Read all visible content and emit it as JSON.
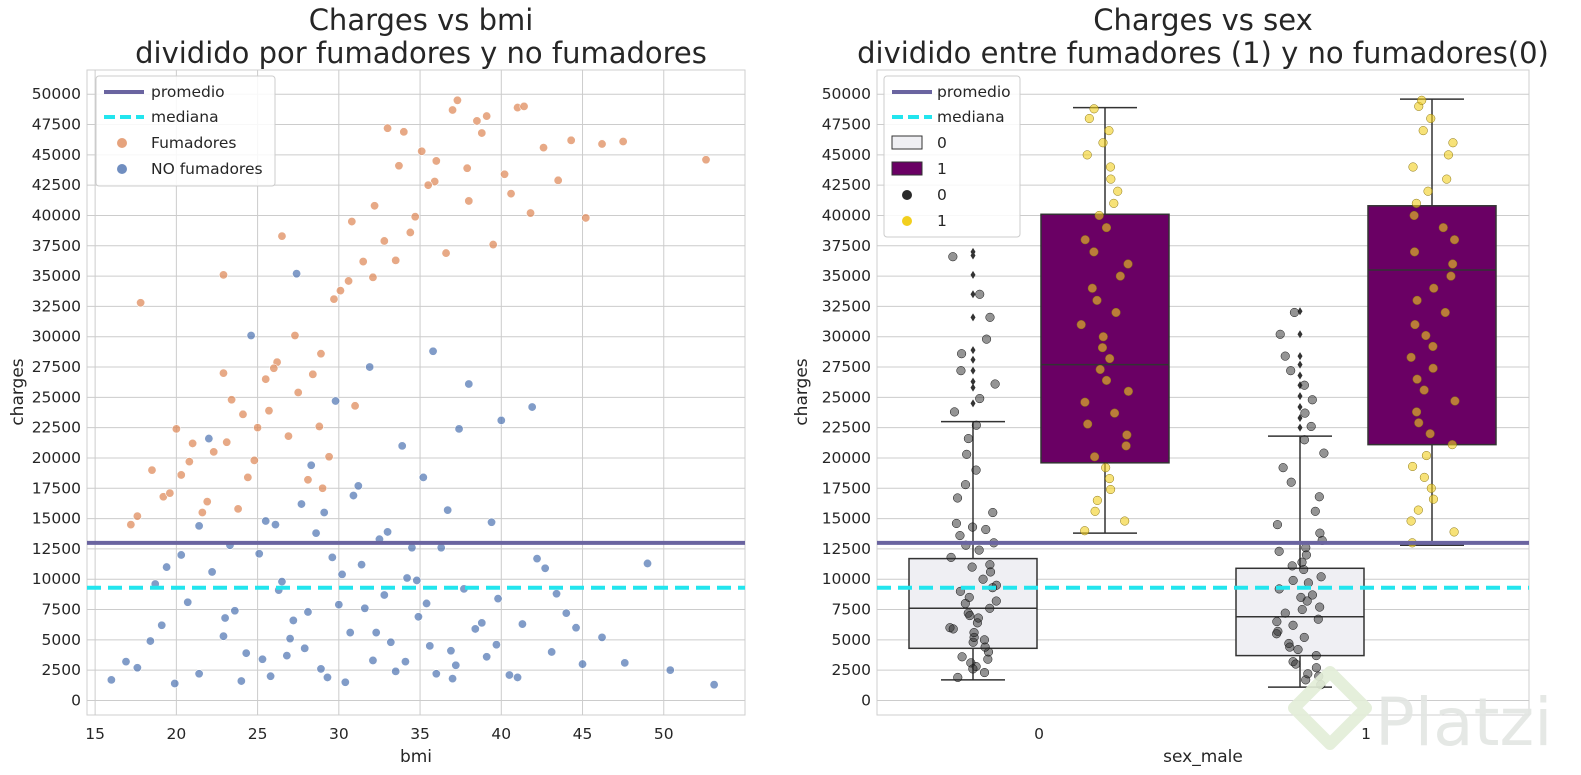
{
  "chart_data": [
    {
      "type": "scatter",
      "title": [
        "Charges vs bmi",
        "dividido por fumadores y no fumadores"
      ],
      "xlabel": "bmi",
      "ylabel": "charges",
      "xlim": [
        14.5,
        55
      ],
      "ylim": [
        -1200,
        52000
      ],
      "xticks": [
        15,
        20,
        25,
        30,
        35,
        40,
        45,
        50
      ],
      "yticks": [
        0,
        2500,
        5000,
        7500,
        10000,
        12500,
        15000,
        17500,
        20000,
        22500,
        25000,
        27500,
        30000,
        32500,
        35000,
        37500,
        40000,
        42500,
        45000,
        47500,
        50000
      ],
      "grid": true,
      "legend_position": "top-left",
      "hlines": [
        {
          "name": "promedio",
          "y": 13000,
          "style": "solid",
          "color": "#6a64a0"
        },
        {
          "name": "mediana",
          "y": 9300,
          "style": "dashed",
          "color": "#22e5ee"
        }
      ],
      "series": [
        {
          "name": "Fumadores",
          "color": "#dd8452",
          "x": [
            17.2,
            17.8,
            18.5,
            19.2,
            20.0,
            20.3,
            21.0,
            21.6,
            22.3,
            22.9,
            23.4,
            24.1,
            24.8,
            25.5,
            26.2,
            26.9,
            27.5,
            28.1,
            28.8,
            29.4,
            30.1,
            30.8,
            31.5,
            32.2,
            33.0,
            33.7,
            34.4,
            35.1,
            35.9,
            36.6,
            37.3,
            38.0,
            38.8,
            39.5,
            40.2,
            41.0,
            41.8,
            42.6,
            43.5,
            44.3,
            45.2,
            46.2,
            47.5,
            52.6,
            22.9,
            26.5,
            32.1,
            36.0,
            25.0,
            29.0,
            33.5,
            37.9,
            23.8,
            27.3,
            31.0,
            34.7,
            39.1,
            20.8,
            24.4,
            28.4,
            30.6,
            34.0,
            37.0,
            40.6,
            19.6,
            23.1,
            26.0,
            29.7,
            32.8,
            35.5,
            38.5,
            41.4,
            17.6,
            21.9,
            25.7,
            28.9
          ],
          "y": [
            14500,
            32800,
            19000,
            16800,
            22400,
            18600,
            21200,
            15500,
            20500,
            35100,
            24800,
            23600,
            19800,
            26500,
            27900,
            21800,
            25400,
            18200,
            22600,
            20100,
            33800,
            39500,
            36200,
            40800,
            47200,
            44100,
            38600,
            45300,
            42800,
            36900,
            49500,
            41200,
            46800,
            37600,
            43400,
            48900,
            40200,
            45600,
            42900,
            46200,
            39800,
            45900,
            46100,
            44600,
            27000,
            38300,
            34900,
            44500,
            22500,
            17500,
            36300,
            43900,
            15800,
            30100,
            24300,
            39900,
            48200,
            19700,
            18400,
            26900,
            34600,
            46900,
            48700,
            41800,
            17100,
            21300,
            27400,
            33100,
            37900,
            42500,
            47800,
            49000,
            15200,
            16400,
            23900,
            28600
          ]
        },
        {
          "name": "NO fumadores",
          "color": "#4c72b0",
          "x": [
            16.0,
            16.9,
            17.6,
            18.4,
            19.1,
            19.9,
            20.7,
            21.4,
            22.2,
            22.9,
            23.6,
            24.3,
            25.1,
            25.8,
            26.5,
            27.2,
            27.9,
            28.6,
            29.3,
            30.0,
            30.7,
            31.4,
            32.1,
            32.8,
            33.5,
            34.2,
            34.9,
            35.6,
            36.3,
            37.0,
            37.7,
            38.4,
            39.1,
            39.8,
            40.5,
            41.3,
            42.2,
            43.1,
            44.0,
            45.0,
            46.2,
            47.6,
            49.0,
            50.4,
            53.1,
            24.6,
            27.4,
            29.8,
            31.9,
            33.9,
            35.8,
            38.0,
            40.0,
            26.1,
            28.3,
            30.9,
            33.0,
            35.2,
            37.4,
            23.3,
            25.5,
            27.7,
            29.1,
            31.2,
            32.5,
            34.5,
            36.7,
            39.4,
            41.9,
            22.0,
            21.4,
            20.3,
            19.4,
            18.7,
            44.6,
            43.4,
            42.7,
            30.4,
            28.9,
            26.8,
            24.0,
            36.0,
            34.8,
            38.8,
            33.2,
            31.6,
            29.6,
            27.0,
            25.3,
            23.0,
            35.4,
            37.2,
            39.7,
            41.0,
            30.2,
            32.3,
            28.1,
            26.3,
            34.1,
            36.9
          ],
          "y": [
            1700,
            3200,
            2700,
            4900,
            6200,
            1400,
            8100,
            2200,
            10600,
            5300,
            7400,
            3900,
            12100,
            2000,
            9800,
            6600,
            4300,
            13800,
            1900,
            7900,
            5600,
            11200,
            3300,
            8700,
            2400,
            10100,
            6900,
            4500,
            12600,
            1800,
            9200,
            5900,
            3600,
            8400,
            2100,
            6300,
            11700,
            4000,
            7200,
            3000,
            5200,
            3100,
            11300,
            2500,
            1300,
            30100,
            35200,
            24700,
            27500,
            21000,
            28800,
            26100,
            23100,
            14500,
            19400,
            16900,
            13900,
            18400,
            22400,
            12800,
            14800,
            16200,
            15500,
            17700,
            13300,
            12600,
            15700,
            14700,
            24200,
            21600,
            14400,
            12000,
            11000,
            9600,
            6000,
            8800,
            10900,
            1500,
            2600,
            3700,
            1600,
            2200,
            9900,
            6400,
            4800,
            7600,
            11800,
            5100,
            3400,
            6800,
            8000,
            2900,
            4600,
            1900,
            10400,
            5600,
            7300,
            9100,
            3200,
            4100
          ]
        }
      ]
    },
    {
      "type": "box",
      "title": [
        "Charges vs sex",
        "dividido entre fumadores (1) y no fumadores(0)"
      ],
      "xlabel": "sex_male",
      "ylabel": "charges",
      "categories": [
        "0",
        "1"
      ],
      "ylim": [
        -1200,
        52000
      ],
      "yticks": [
        0,
        2500,
        5000,
        7500,
        10000,
        12500,
        15000,
        17500,
        20000,
        22500,
        25000,
        27500,
        30000,
        32500,
        35000,
        37500,
        40000,
        42500,
        45000,
        47500,
        50000
      ],
      "grid": true,
      "legend_position": "top-left",
      "hlines": [
        {
          "name": "promedio",
          "y": 13000,
          "style": "solid",
          "color": "#6a64a0"
        },
        {
          "name": "mediana",
          "y": 9300,
          "style": "dashed",
          "color": "#22e5ee"
        }
      ],
      "hue_levels": [
        {
          "name": "0",
          "box_color": "#efeff3",
          "point_color": "#2a2a2a"
        },
        {
          "name": "1",
          "box_color": "#6a0064",
          "point_color": "#f2cf1e"
        }
      ],
      "boxes": [
        {
          "category": "0",
          "hue": "0",
          "whisker_low": 1700,
          "q1": 4300,
          "median": 7600,
          "q3": 11700,
          "whisker_high": 23000,
          "outliers": [
            24500,
            25800,
            26300,
            27200,
            28100,
            28900,
            31600,
            33500,
            35100,
            36700,
            37000
          ]
        },
        {
          "category": "0",
          "hue": "1",
          "whisker_low": 13800,
          "q1": 19600,
          "median": 27700,
          "q3": 40100,
          "whisker_high": 48900,
          "outliers": []
        },
        {
          "category": "1",
          "hue": "0",
          "whisker_low": 1100,
          "q1": 3700,
          "median": 6900,
          "q3": 10900,
          "whisker_high": 21800,
          "outliers": [
            22500,
            23300,
            24200,
            25100,
            26000,
            26800,
            27700,
            28400,
            30200,
            32100
          ]
        },
        {
          "category": "1",
          "hue": "1",
          "whisker_low": 12800,
          "q1": 21100,
          "median": 35500,
          "q3": 40800,
          "whisker_high": 49600,
          "outliers": []
        }
      ],
      "strip": [
        {
          "category": "0",
          "hue": "0",
          "values": [
            1900,
            2300,
            2800,
            3100,
            3600,
            4000,
            4400,
            4800,
            5200,
            5600,
            6000,
            6400,
            6800,
            7200,
            7600,
            8000,
            8500,
            9000,
            9500,
            10000,
            10600,
            11200,
            11800,
            12400,
            13000,
            13600,
            14100,
            14600,
            15500,
            16700,
            17800,
            19000,
            20300,
            21600,
            22700,
            23800,
            24900,
            26100,
            27200,
            28600,
            29800,
            31600,
            33500,
            36600,
            2600,
            3400,
            5000,
            5900,
            7000,
            8200,
            9300,
            11000,
            12800,
            14300
          ]
        },
        {
          "category": "0",
          "hue": "1",
          "values": [
            14000,
            14800,
            15600,
            16500,
            17400,
            18300,
            19200,
            20100,
            21000,
            21900,
            22800,
            23700,
            24600,
            25500,
            26400,
            27300,
            28200,
            29100,
            30000,
            31000,
            32000,
            33000,
            34000,
            35000,
            36000,
            37000,
            38000,
            39000,
            40000,
            41000,
            42000,
            43000,
            44000,
            45000,
            46000,
            47000,
            48000,
            48800
          ]
        },
        {
          "category": "1",
          "hue": "0",
          "values": [
            1300,
            1700,
            2200,
            2700,
            3200,
            3700,
            4200,
            4700,
            5200,
            5700,
            6200,
            6700,
            7200,
            7700,
            8200,
            8700,
            9200,
            9700,
            10200,
            10800,
            11400,
            12000,
            12600,
            13200,
            13800,
            14500,
            15600,
            16800,
            18000,
            19200,
            20400,
            21500,
            22600,
            23700,
            24800,
            26000,
            27200,
            28400,
            30200,
            32000,
            2000,
            3000,
            4400,
            5500,
            6500,
            7500,
            8500,
            9900,
            11100,
            12300
          ]
        },
        {
          "category": "1",
          "hue": "1",
          "values": [
            13000,
            13900,
            14800,
            15700,
            16600,
            17500,
            18400,
            19300,
            20200,
            21100,
            22000,
            22900,
            23800,
            24700,
            25600,
            26500,
            27400,
            28300,
            29200,
            30100,
            31000,
            32000,
            33000,
            34000,
            35000,
            36000,
            37000,
            38000,
            39000,
            40000,
            41000,
            42000,
            43000,
            44000,
            45000,
            46000,
            47000,
            48000,
            49000,
            49500
          ]
        }
      ]
    }
  ],
  "left_legend": {
    "items": [
      {
        "label": "promedio",
        "kind": "line",
        "color": "#6a64a0"
      },
      {
        "label": "mediana",
        "kind": "dashed",
        "color": "#22e5ee"
      },
      {
        "label": "Fumadores",
        "kind": "dot",
        "color": "#dd8452"
      },
      {
        "label": "NO fumadores",
        "kind": "dot",
        "color": "#4c72b0"
      }
    ]
  },
  "right_legend": {
    "items": [
      {
        "label": "promedio",
        "kind": "line",
        "color": "#6a64a0"
      },
      {
        "label": "mediana",
        "kind": "dashed",
        "color": "#22e5ee"
      },
      {
        "label": "0",
        "kind": "patch",
        "color": "#efeff3"
      },
      {
        "label": "1",
        "kind": "patch",
        "color": "#6a0064"
      },
      {
        "label": "0",
        "kind": "dot",
        "color": "#2a2a2a"
      },
      {
        "label": "1",
        "kind": "dot",
        "color": "#f2cf1e"
      }
    ]
  },
  "watermark": {
    "text": "Platzi"
  }
}
